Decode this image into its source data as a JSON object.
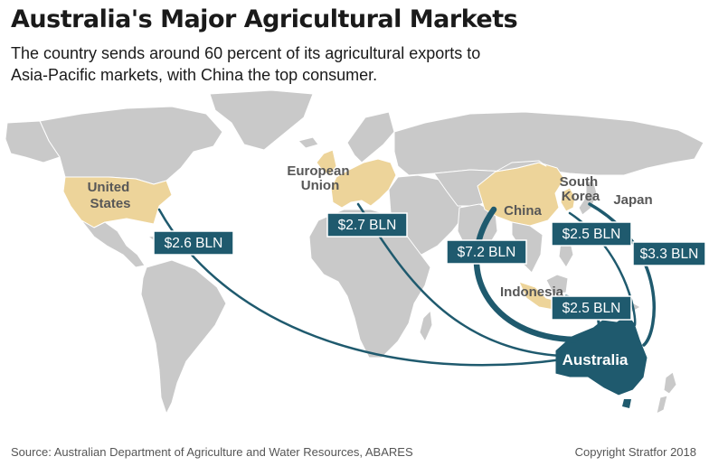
{
  "header": {
    "title": "Australia's Major Agricultural Markets",
    "subtitle": "The country sends around 60 percent of its agricultural exports to Asia-Pacific markets, with China the top consumer."
  },
  "map": {
    "regions": {
      "united_states": [
        "United",
        "States"
      ],
      "european_union": [
        "European",
        "Union"
      ],
      "china": "China",
      "south_korea": [
        "South",
        "Korea"
      ],
      "japan": "Japan",
      "indonesia": "Indonesia",
      "australia": "Australia"
    },
    "flows": [
      {
        "market": "United States",
        "value": "$2.6 BLN"
      },
      {
        "market": "European Union",
        "value": "$2.7 BLN"
      },
      {
        "market": "China",
        "value": "$7.2 BLN"
      },
      {
        "market": "South Korea",
        "value": "$2.5 BLN"
      },
      {
        "market": "Japan",
        "value": "$3.3 BLN"
      },
      {
        "market": "Indonesia",
        "value": "$2.5 BLN"
      }
    ]
  },
  "footer": {
    "source": "Source: Australian Department of Agriculture and Water Resources, ABARES",
    "copyright": "Copyright Stratfor 2018"
  },
  "colors": {
    "land": "#c9c9c9",
    "highlight": "#edd49a",
    "flow": "#1f5a6e",
    "australia": "#1f5a6e",
    "label_text": "#575757"
  }
}
